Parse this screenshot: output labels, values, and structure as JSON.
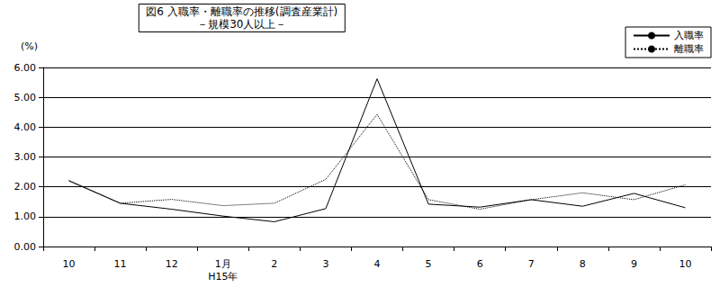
{
  "chart_data": {
    "type": "line",
    "title": "図6 入職率・離職率の推移(調査産業計)",
    "subtitle": "－規模30人以上－",
    "y_label": "(%)",
    "categories": [
      "10",
      "11",
      "12",
      "1月\nH15年",
      "2",
      "3",
      "4",
      "5",
      "6",
      "7",
      "8",
      "9",
      "10"
    ],
    "series": [
      {
        "name": "入職率",
        "color": "#000000",
        "line_style": "solid",
        "values": [
          2.2,
          1.45,
          1.25,
          1.02,
          0.83,
          1.27,
          5.62,
          1.42,
          1.32,
          1.57,
          1.35,
          1.78,
          1.3
        ]
      },
      {
        "name": "離職率",
        "color": "#000000",
        "line_style": "dotted",
        "values": [
          2.22,
          1.45,
          1.58,
          1.37,
          1.45,
          2.25,
          4.43,
          1.57,
          1.25,
          1.57,
          1.8,
          1.57,
          2.07
        ]
      }
    ],
    "ylim": [
      0,
      6
    ],
    "yticks": [
      {
        "value": 0,
        "label": "0.00"
      },
      {
        "value": 1,
        "label": "1.00"
      },
      {
        "value": 2,
        "label": "2.00"
      },
      {
        "value": 3,
        "label": "3.00"
      },
      {
        "value": 4,
        "label": "4.00"
      },
      {
        "value": 5,
        "label": "5.00"
      },
      {
        "value": 6,
        "label": "6.00"
      }
    ],
    "grid": true,
    "legend": "top-right"
  }
}
